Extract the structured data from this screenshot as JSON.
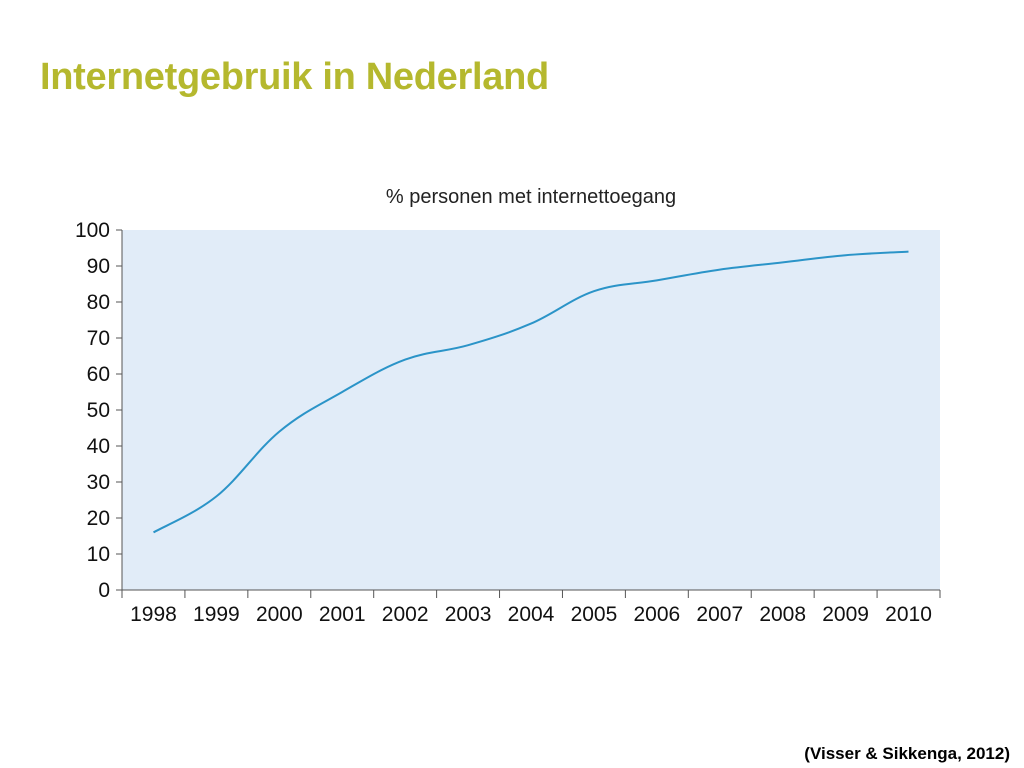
{
  "slide": {
    "title": "Internetgebruik in Nederland",
    "source": "(Visser & Sikkenga, 2012)"
  },
  "chart_data": {
    "type": "line",
    "title": "% personen met internettoegang",
    "xlabel": "",
    "ylabel": "",
    "categories": [
      "1998",
      "1999",
      "2000",
      "2001",
      "2002",
      "2003",
      "2004",
      "2005",
      "2006",
      "2007",
      "2008",
      "2009",
      "2010"
    ],
    "series": [
      {
        "values": [
          16,
          26,
          44,
          55,
          64,
          68,
          74,
          83,
          86,
          89,
          91,
          93,
          94
        ]
      }
    ],
    "ylim": [
      0,
      100
    ],
    "yticks": [
      0,
      10,
      20,
      30,
      40,
      50,
      60,
      70,
      80,
      90,
      100
    ],
    "grid": false,
    "legend": "none",
    "colors": {
      "plot_background": "#e1ecf8",
      "line": "#2b94c8",
      "axis": "#555555"
    }
  }
}
